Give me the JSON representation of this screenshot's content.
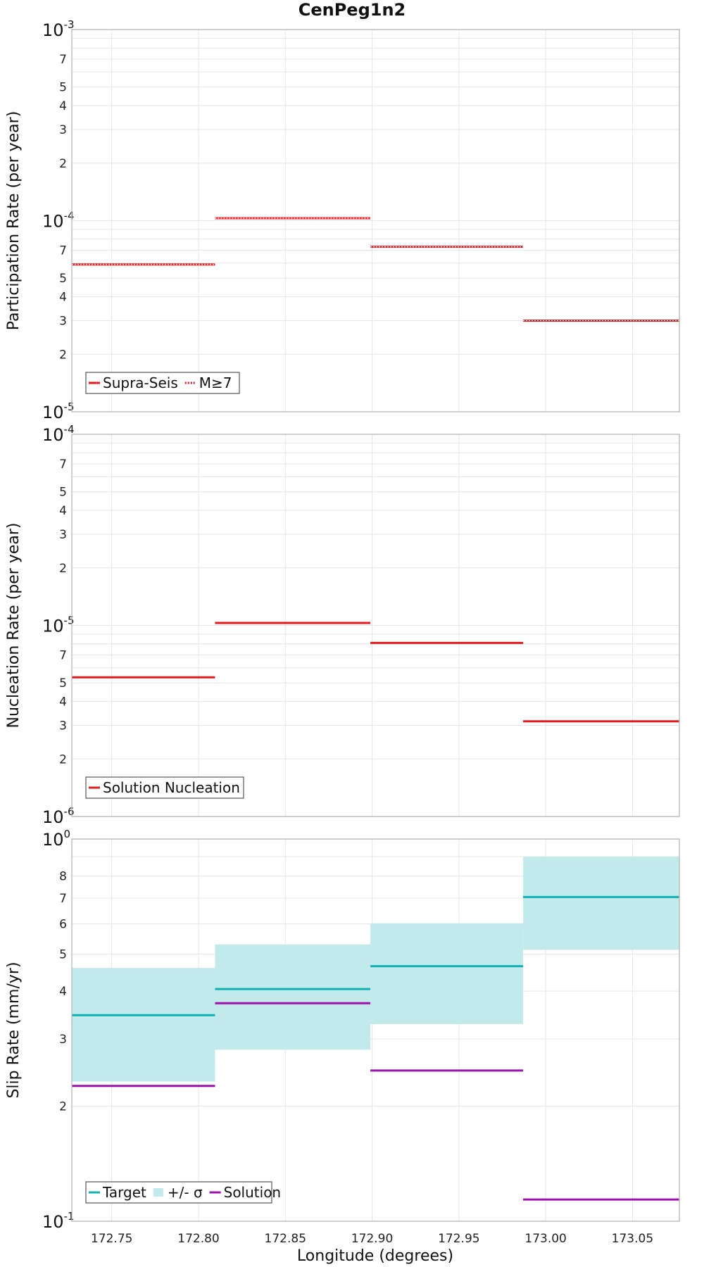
{
  "chart_data": {
    "title": "CenPeg1n2",
    "xlabel": "Longitude (degrees)",
    "xlim": [
      172.727,
      173.077
    ],
    "xticks": [
      172.75,
      172.8,
      172.85,
      172.9,
      172.95,
      173.0,
      173.05
    ],
    "xtick_labels": [
      "172.75",
      "172.80",
      "172.85",
      "172.90",
      "172.95",
      "173.00",
      "173.05"
    ],
    "segment_edges": [
      172.727,
      172.8095,
      172.899,
      172.987,
      173.077
    ],
    "panels": [
      {
        "type": "line",
        "ylabel": "Participation Rate (per year)",
        "yscale": "log",
        "ylim": [
          1e-05,
          0.001
        ],
        "decades": [
          {
            "value": 0.001,
            "base": "10",
            "exp": "-3"
          },
          {
            "value": 0.0001,
            "base": "10",
            "exp": "-4"
          },
          {
            "value": 1e-05,
            "base": "10",
            "exp": "-5"
          }
        ],
        "minor_labels": [
          "2",
          "3",
          "4",
          "5",
          "7"
        ],
        "grid": true,
        "legend_position": "bottom-left",
        "series": [
          {
            "name": "Supra-Seis",
            "color": "#e41a1c",
            "style": "solid",
            "values": [
              5.9e-05,
              0.000103,
              7.3e-05,
              3e-05
            ]
          },
          {
            "name": "M≥7",
            "color": "#e41a1c",
            "style": "dotted",
            "values": [
              5.9e-05,
              0.000103,
              7.3e-05,
              3e-05
            ]
          }
        ]
      },
      {
        "type": "line",
        "ylabel": "Nucleation Rate (per year)",
        "yscale": "log",
        "ylim": [
          1e-06,
          0.0001
        ],
        "decades": [
          {
            "value": 0.0001,
            "base": "10",
            "exp": "-4"
          },
          {
            "value": 1e-05,
            "base": "10",
            "exp": "-5"
          },
          {
            "value": 1e-06,
            "base": "10",
            "exp": "-6"
          }
        ],
        "minor_labels": [
          "2",
          "3",
          "4",
          "5",
          "7"
        ],
        "grid": true,
        "legend_position": "bottom-left",
        "series": [
          {
            "name": "Solution Nucleation",
            "color": "#e41a1c",
            "style": "solid",
            "values": [
              5.35e-06,
              1.03e-05,
              8.1e-06,
              3.15e-06
            ]
          }
        ]
      },
      {
        "type": "line",
        "ylabel": "Slip Rate (mm/yr)",
        "yscale": "log",
        "ylim": [
          0.1,
          1
        ],
        "decades": [
          {
            "value": 1,
            "base": "10",
            "exp": "0"
          },
          {
            "value": 0.1,
            "base": "10",
            "exp": "-1"
          }
        ],
        "minor_labels": [
          "2",
          "3",
          "4",
          "5",
          "6",
          "7",
          "8"
        ],
        "grid": true,
        "legend_position": "bottom-left",
        "series": [
          {
            "name": "Target",
            "color": "#10b0b0",
            "style": "solid",
            "values": [
              0.346,
              0.405,
              0.465,
              0.705
            ]
          },
          {
            "name": "+/- σ",
            "color": "#c2eaea",
            "style": "band",
            "lower": [
              0.232,
              0.281,
              0.328,
              0.513
            ],
            "upper": [
              0.46,
              0.53,
              0.602,
              0.898
            ]
          },
          {
            "name": "Solution",
            "color": "#a010b0",
            "style": "solid",
            "values": [
              0.226,
              0.372,
              0.248,
              0.114
            ]
          }
        ]
      }
    ]
  }
}
